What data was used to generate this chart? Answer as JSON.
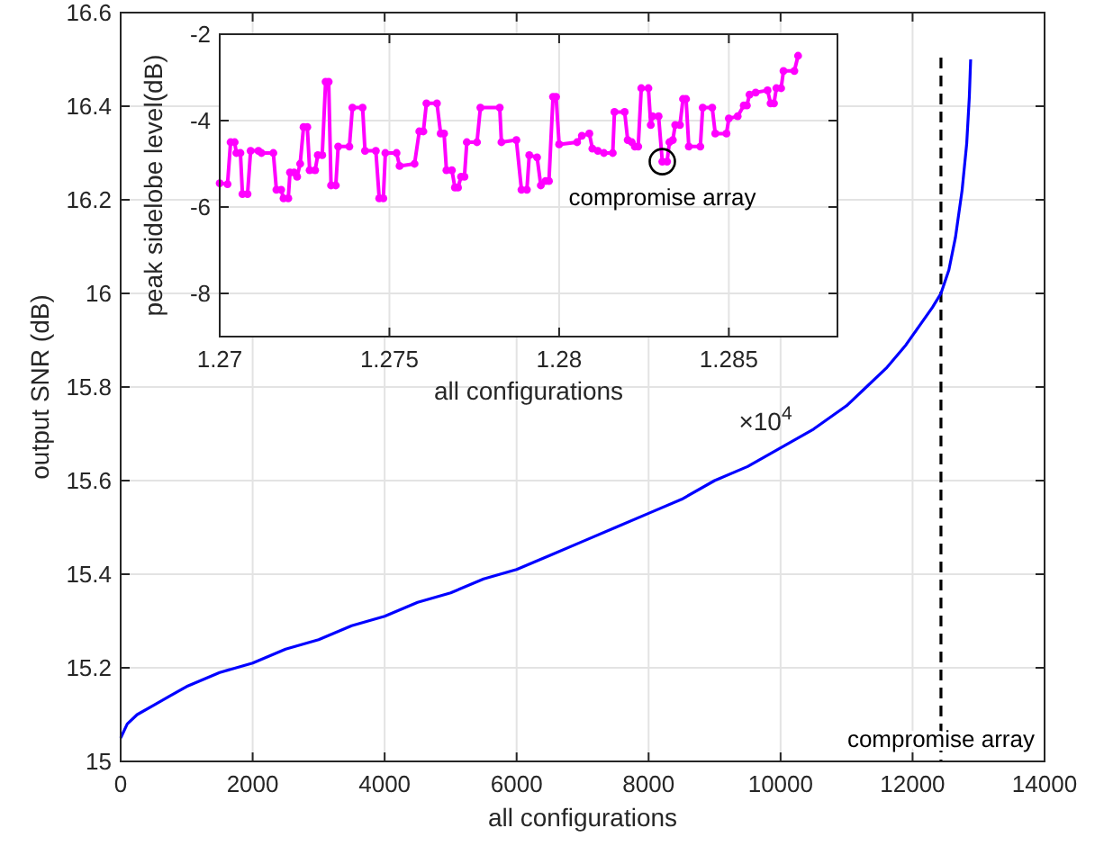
{
  "chart_data": [
    {
      "type": "line",
      "xlabel": "all configurations",
      "ylabel": "output SNR (dB)",
      "xlim": [
        0,
        14000
      ],
      "ylim": [
        15,
        16.6
      ],
      "xticks": [
        0,
        2000,
        4000,
        6000,
        8000,
        10000,
        12000,
        14000
      ],
      "yticks": [
        15,
        15.2,
        15.4,
        15.6,
        15.8,
        16,
        16.2,
        16.4,
        16.6
      ],
      "grid": true,
      "marker": "none",
      "line_style": "solid",
      "series": [
        {
          "color": "#0000ff",
          "x": [
            0,
            100,
            250,
            500,
            750,
            1000,
            1500,
            2000,
            2500,
            3000,
            3500,
            4000,
            4500,
            5000,
            5500,
            6000,
            6500,
            7000,
            7500,
            8000,
            8500,
            9000,
            9500,
            10000,
            10500,
            11000,
            11300,
            11600,
            11900,
            12100,
            12300,
            12430,
            12550,
            12650,
            12750,
            12820,
            12860,
            12880
          ],
          "values": [
            15.05,
            15.08,
            15.1,
            15.12,
            15.14,
            15.16,
            15.19,
            15.21,
            15.24,
            15.26,
            15.29,
            15.31,
            15.34,
            15.36,
            15.39,
            15.41,
            15.44,
            15.47,
            15.5,
            15.53,
            15.56,
            15.6,
            15.63,
            15.67,
            15.71,
            15.76,
            15.8,
            15.84,
            15.89,
            15.93,
            15.97,
            16.0,
            16.05,
            16.12,
            16.22,
            16.32,
            16.42,
            16.5
          ]
        }
      ],
      "ref_lines": [
        {
          "axis": "x",
          "value": 12430,
          "label": "compromise array",
          "color": "#000000",
          "line_style": "dashed"
        }
      ]
    },
    {
      "type": "line",
      "xlabel": "all configurations",
      "ylabel": "peak sidelobe level(dB)",
      "xlim": [
        1.27,
        1.2882
      ],
      "ylim": [
        -9,
        -2
      ],
      "xticks": [
        1.27,
        1.275,
        1.28,
        1.285
      ],
      "yticks": [
        -8,
        -6,
        -4,
        -2
      ],
      "grid": true,
      "marker": "circle",
      "line_style": "solid",
      "annotations": [
        {
          "text": "compromise array",
          "x": 1.28304,
          "y": -4.95
        },
        "×10$^{4}$"
      ],
      "series": [
        {
          "color": "#ff00ff",
          "x": [
            1.27,
            1.27023,
            1.27032,
            1.27044,
            1.27049,
            1.27061,
            1.27067,
            1.27082,
            1.27091,
            1.27114,
            1.27123,
            1.27158,
            1.27167,
            1.27181,
            1.27188,
            1.27202,
            1.27207,
            1.27219,
            1.27228,
            1.27237,
            1.27247,
            1.27258,
            1.27265,
            1.27281,
            1.27289,
            1.27302,
            1.27312,
            1.27321,
            1.27328,
            1.27342,
            1.27349,
            1.27382,
            1.27391,
            1.27421,
            1.27428,
            1.2746,
            1.2747,
            1.27482,
            1.27488,
            1.27521,
            1.2753,
            1.27574,
            1.27588,
            1.276,
            1.27609,
            1.2764,
            1.27651,
            1.27661,
            1.27668,
            1.27684,
            1.27693,
            1.27702,
            1.27711,
            1.27721,
            1.27728,
            1.27758,
            1.27768,
            1.27825,
            1.2783,
            1.27874,
            1.27889,
            1.27905,
            1.27912,
            1.27935,
            1.27946,
            1.2796,
            1.2797,
            1.27982,
            1.27991,
            1.28,
            1.28053,
            1.28067,
            1.28089,
            1.28098,
            1.28114,
            1.28132,
            1.28158,
            1.28163,
            1.28193,
            1.28202,
            1.28214,
            1.28223,
            1.28233,
            1.28242,
            1.28263,
            1.2827,
            1.28275,
            1.28293,
            1.28304,
            1.28318,
            1.28325,
            1.28335,
            1.28342,
            1.28356,
            1.28365,
            1.28374,
            1.28382,
            1.28416,
            1.28423,
            1.28451,
            1.2846,
            1.28493,
            1.285,
            1.28526,
            1.28544,
            1.28553,
            1.28561,
            1.28579,
            1.28614,
            1.28623,
            1.28633,
            1.2864,
            1.28654,
            1.28661,
            1.28693,
            1.28704
          ],
          "values": [
            -5.45,
            -5.47,
            -4.5,
            -4.5,
            -4.75,
            -4.75,
            -5.7,
            -5.7,
            -4.7,
            -4.7,
            -4.75,
            -4.75,
            -5.6,
            -5.6,
            -5.8,
            -5.8,
            -5.2,
            -5.2,
            -5.3,
            -5.0,
            -4.15,
            -4.15,
            -5.15,
            -5.15,
            -4.8,
            -4.8,
            -3.1,
            -3.1,
            -5.5,
            -5.5,
            -4.6,
            -4.6,
            -3.7,
            -3.7,
            -4.7,
            -4.7,
            -5.8,
            -5.8,
            -4.75,
            -4.75,
            -5.05,
            -5.0,
            -4.25,
            -4.25,
            -3.6,
            -3.6,
            -4.3,
            -4.3,
            -5.15,
            -5.15,
            -5.55,
            -5.55,
            -5.3,
            -5.3,
            -4.5,
            -4.5,
            -3.7,
            -3.7,
            -4.5,
            -4.45,
            -5.6,
            -5.6,
            -4.8,
            -4.85,
            -5.5,
            -5.4,
            -5.4,
            -3.45,
            -3.45,
            -4.55,
            -4.5,
            -4.35,
            -4.3,
            -4.65,
            -4.7,
            -4.75,
            -4.75,
            -3.8,
            -3.8,
            -4.45,
            -4.5,
            -4.6,
            -4.6,
            -3.25,
            -3.25,
            -4.1,
            -3.9,
            -3.9,
            -4.95,
            -4.95,
            -4.5,
            -4.45,
            -4.1,
            -4.1,
            -3.5,
            -3.5,
            -4.6,
            -4.6,
            -3.7,
            -3.7,
            -4.3,
            -4.3,
            -3.95,
            -3.9,
            -3.65,
            -3.65,
            -3.4,
            -3.35,
            -3.3,
            -3.6,
            -3.6,
            -3.25,
            -3.25,
            -2.85,
            -2.85,
            -2.5
          ]
        }
      ]
    }
  ]
}
